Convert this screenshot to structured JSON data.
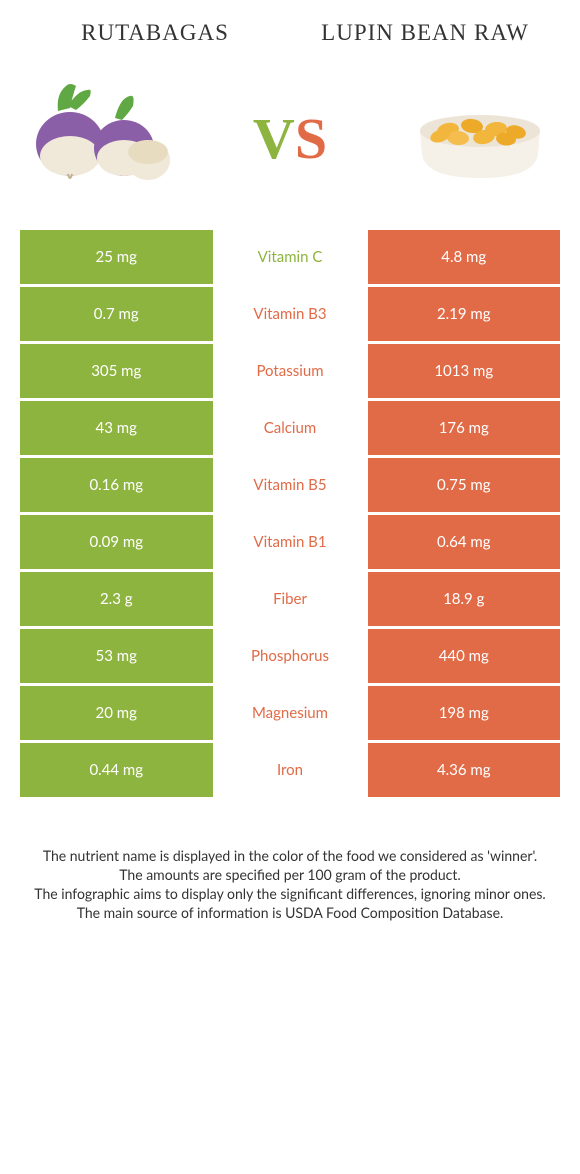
{
  "colors": {
    "left": "#8eb440",
    "right": "#e16b47",
    "background": "#ffffff",
    "text": "#333333"
  },
  "header": {
    "left_title": "Rutabagas",
    "right_title": "LUPIN BEAN RAW",
    "left_fontsize": 23,
    "right_fontsize": 23,
    "left_color": "#333333",
    "right_color": "#333333"
  },
  "vs": {
    "v_text": "V",
    "s_text": "S",
    "v_color": "#8eb440",
    "s_color": "#e16b47",
    "fontsize": 58
  },
  "rows": [
    {
      "left": "25 mg",
      "label": "Vitamin C",
      "right": "4.8 mg",
      "winner": "left"
    },
    {
      "left": "0.7 mg",
      "label": "Vitamin B3",
      "right": "2.19 mg",
      "winner": "right"
    },
    {
      "left": "305 mg",
      "label": "Potassium",
      "right": "1013 mg",
      "winner": "right"
    },
    {
      "left": "43 mg",
      "label": "Calcium",
      "right": "176 mg",
      "winner": "right"
    },
    {
      "left": "0.16 mg",
      "label": "Vitamin B5",
      "right": "0.75 mg",
      "winner": "right"
    },
    {
      "left": "0.09 mg",
      "label": "Vitamin B1",
      "right": "0.64 mg",
      "winner": "right"
    },
    {
      "left": "2.3 g",
      "label": "Fiber",
      "right": "18.9 g",
      "winner": "right"
    },
    {
      "left": "53 mg",
      "label": "Phosphorus",
      "right": "440 mg",
      "winner": "right"
    },
    {
      "left": "20 mg",
      "label": "Magnesium",
      "right": "198 mg",
      "winner": "right"
    },
    {
      "left": "0.44 mg",
      "label": "Iron",
      "right": "4.36 mg",
      "winner": "right"
    }
  ],
  "footer": {
    "line1": "The nutrient name is displayed in the color of the food we considered as 'winner'.",
    "line2": "The amounts are specified per 100 gram of the product.",
    "line3": "The infographic aims to display only the significant differences, ignoring minor ones.",
    "line4": "The main source of information is USDA Food Composition Database."
  },
  "icons": {
    "left": "rutabaga-icon",
    "right": "lupin-bean-icon",
    "bowl_color": "#f5f0e8",
    "bean_color": "#f2b63c",
    "rutabaga_purple": "#8b5fa8",
    "rutabaga_cream": "#f0e8d8",
    "leaf_green": "#5fa843"
  }
}
